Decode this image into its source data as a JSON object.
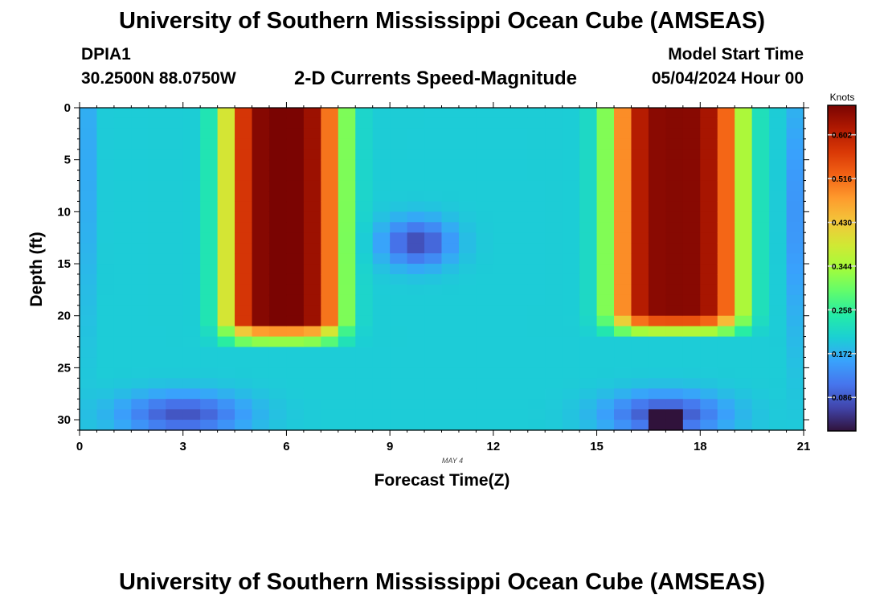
{
  "header": {
    "title": "University of Southern Mississippi Ocean Cube (AMSEAS)",
    "station": "DPIA1",
    "coordinates": "30.2500N  88.0750W",
    "subtitle": "2-D Currents Speed-Magnitude",
    "model_start_label": "Model Start Time",
    "model_start_value": "05/04/2024 Hour 00"
  },
  "footer": {
    "title": "University of Southern Mississippi Ocean Cube (AMSEAS)"
  },
  "chart_data": {
    "type": "heatmap",
    "title": "2-D Currents Speed-Magnitude",
    "xlabel": "Forecast Time(Z)",
    "ylabel": "Depth (ft)",
    "date_label": "MAY 4",
    "x_ticks": [
      0,
      3,
      6,
      9,
      12,
      15,
      18,
      21
    ],
    "y_ticks": [
      0,
      5,
      10,
      15,
      20,
      25,
      30
    ],
    "xlim": [
      0,
      21
    ],
    "ylim": [
      0,
      31
    ],
    "y_inverted": true,
    "colorbar": {
      "title": "Knots",
      "ticks": [
        0.086,
        0.172,
        0.258,
        0.344,
        0.43,
        0.516,
        0.602
      ],
      "range": [
        0.02,
        0.66
      ],
      "palette": [
        "#30123b",
        "#4145ab",
        "#4675ed",
        "#39a2fc",
        "#1bcfd4",
        "#24eca6",
        "#61fc6c",
        "#a4fc3b",
        "#d1e834",
        "#f3c63a",
        "#fe9b2d",
        "#f36315",
        "#d93806",
        "#b11901",
        "#7a0402"
      ]
    },
    "time_columns": [
      0.25,
      0.75,
      1.25,
      1.75,
      2.25,
      2.75,
      3.25,
      3.75,
      4.25,
      4.75,
      5.25,
      5.75,
      6.25,
      6.75,
      7.25,
      7.75,
      8.25,
      8.75,
      9.25,
      9.75,
      10.25,
      10.75,
      11.25,
      11.75,
      12.25,
      12.75,
      13.25,
      13.75,
      14.25,
      14.75,
      15.25,
      15.75,
      16.25,
      16.75,
      17.25,
      17.75,
      18.25,
      18.75,
      19.25,
      19.75,
      20.25,
      20.75
    ],
    "depth_rows": [
      0.5,
      1.5,
      2.5,
      3.5,
      4.5,
      5.5,
      6.5,
      7.5,
      8.5,
      9.5,
      10.5,
      11.5,
      12.5,
      13.5,
      14.5,
      15.5,
      16.5,
      17.5,
      18.5,
      19.5,
      20.5,
      21.5,
      22.5,
      23.5,
      24.5,
      25.5,
      26.5,
      27.5,
      28.5,
      29.5,
      30.5
    ],
    "speed_description": "Current speed (knots) as a function of forecast time (columns) and depth (rows); model parameters below reconstruct the field",
    "model": {
      "base_surface": 0.2,
      "base_bottom": 0.16,
      "peaks": [
        {
          "center_time": 5.9,
          "sigma_time": 1.7,
          "amplitude": 0.66,
          "top_depth": 20.5,
          "bottom_depth": 23.5
        },
        {
          "center_time": 17.3,
          "sigma_time": 1.9,
          "amplitude": 0.65,
          "top_depth": 20.0,
          "bottom_depth": 22.5
        }
      ],
      "lows": [
        {
          "time": 9.8,
          "depth": 13.0,
          "sigma_time": 1.0,
          "sigma_depth": 2.2,
          "amplitude": 0.13
        },
        {
          "time": 3.0,
          "depth": 29.5,
          "sigma_time": 1.8,
          "sigma_depth": 2.0,
          "amplitude": 0.12
        },
        {
          "time": 17.0,
          "depth": 29.5,
          "sigma_time": 1.7,
          "sigma_depth": 2.0,
          "amplitude": 0.13
        },
        {
          "time": 0.0,
          "depth": 5.0,
          "sigma_time": 0.4,
          "sigma_depth": 15.0,
          "amplitude": 0.05
        },
        {
          "time": 21.0,
          "depth": 10.0,
          "sigma_time": 0.4,
          "sigma_depth": 12.0,
          "amplitude": 0.08
        }
      ],
      "minimum_cell": {
        "time": 17.0,
        "depth": 30.0,
        "value": 0.02
      }
    }
  }
}
